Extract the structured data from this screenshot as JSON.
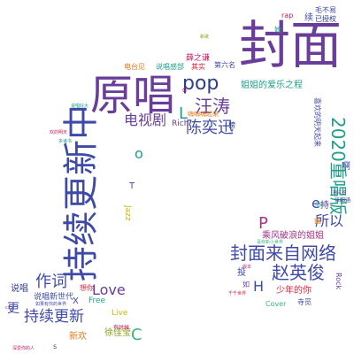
{
  "colors": {
    "purple": "#6a3d9a",
    "indigo": "#3f4aa8",
    "teal": "#1f9e89",
    "green": "#35b779",
    "lime": "#a0da39",
    "yellow": "#c9b80a",
    "olive": "#8d9c17",
    "orange": "#e07b1a",
    "red": "#d7263d",
    "pink": "#c2185b",
    "magenta": "#a6328a",
    "navy": "#2d3e8a"
  },
  "words": [
    {
      "text": "封面"
    },
    {
      "text": "原唱"
    },
    {
      "text": "持续更新中"
    },
    {
      "text": "封面来自网络"
    },
    {
      "text": "2020重唱版"
    },
    {
      "text": "赵英俊"
    },
    {
      "text": "持续更新"
    },
    {
      "text": "汪涛"
    },
    {
      "text": "陈奕迅"
    },
    {
      "text": "pop"
    },
    {
      "text": "电视剧"
    },
    {
      "text": "作词"
    },
    {
      "text": "所以"
    },
    {
      "text": "Love"
    },
    {
      "text": "姐姐的爱乐之程"
    },
    {
      "text": "乘风破浪的姐姐"
    },
    {
      "text": "L"
    },
    {
      "text": "P"
    },
    {
      "text": "H"
    },
    {
      "text": "e"
    },
    {
      "text": "o"
    },
    {
      "text": "C"
    },
    {
      "text": "说唱"
    },
    {
      "text": "说唱新世代"
    },
    {
      "text": "更"
    },
    {
      "text": "新欢"
    },
    {
      "text": "徐佳莹"
    },
    {
      "text": "少年的你"
    },
    {
      "text": "Live"
    },
    {
      "text": "Free"
    },
    {
      "text": "Jazz"
    },
    {
      "text": "Cover"
    },
    {
      "text": "Rich"
    },
    {
      "text": "Rock"
    },
    {
      "text": "rap"
    },
    {
      "text": "毛不易"
    },
    {
      "text": "续"
    },
    {
      "text": "已授权"
    },
    {
      "text": "电台见"
    },
    {
      "text": "说唱感部"
    },
    {
      "text": "薛之谦"
    },
    {
      "text": "第六名"
    },
    {
      "text": "其实"
    },
    {
      "text": "嗨嗨嗨起来"
    },
    {
      "text": "持"
    },
    {
      "text": "啊"
    },
    {
      "text": "投"
    },
    {
      "text": "如"
    },
    {
      "text": "想你"
    },
    {
      "text": "寺觅"
    },
    {
      "text": "有时候"
    },
    {
      "text": "张韶涵"
    },
    {
      "text": "喜欢的明天起来"
    },
    {
      "text": "欢的明天"
    },
    {
      "text": "说唱好大"
    },
    {
      "text": "X"
    },
    {
      "text": "T"
    },
    {
      "text": "s"
    },
    {
      "text": "d"
    },
    {
      "text": "她"
    },
    {
      "text": "榜"
    },
    {
      "text": "第三名"
    },
    {
      "text": "曲"
    },
    {
      "text": "千千世界"
    },
    {
      "text": "喜欢新小世界"
    },
    {
      "text": "深爱你的人"
    },
    {
      "text": "情绪"
    },
    {
      "text": "city"
    },
    {
      "text": "如果有你的世界"
    },
    {
      "text": "多读书"
    },
    {
      "text": "新歌"
    },
    {
      "text": "版本"
    }
  ]
}
